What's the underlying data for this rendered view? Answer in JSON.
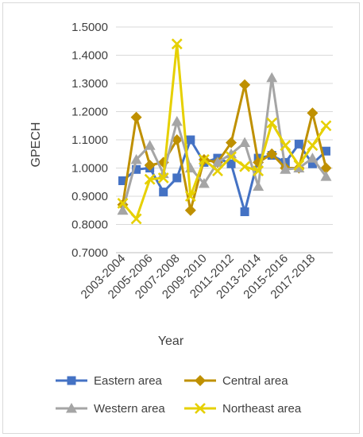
{
  "chart_data": {
    "type": "line",
    "title": "",
    "xlabel": "Year",
    "ylabel": "GPECH",
    "ylim": [
      0.7,
      1.5
    ],
    "y_ticks": [
      "0.7000",
      "0.8000",
      "0.9000",
      "1.0000",
      "1.1000",
      "1.2000",
      "1.3000",
      "1.4000",
      "1.5000"
    ],
    "x": [
      "2003-2004",
      "2004-2005",
      "2005-2006",
      "2006-2007",
      "2007-2008",
      "2008-2009",
      "2009-2010",
      "2010-2011",
      "2011-2012",
      "2012-2013",
      "2013-2014",
      "2014-2015",
      "2015-2016",
      "2016-2017",
      "2017-2018",
      "2018-2019"
    ],
    "x_tick_labels": [
      "2003-2004",
      "2005-2006",
      "2007-2008",
      "2009-2010",
      "2011-2012",
      "2013-2014",
      "2015-2016",
      "2017-2018"
    ],
    "grid": "horizontal",
    "legend_position": "bottom",
    "series": [
      {
        "name": "Eastern area",
        "color": "#4472c4",
        "marker": "square",
        "values": [
          0.955,
          0.995,
          1.0,
          0.915,
          0.965,
          1.1,
          1.02,
          1.035,
          1.015,
          0.845,
          1.035,
          1.045,
          1.02,
          1.085,
          1.015,
          1.06
        ]
      },
      {
        "name": "Central area",
        "color": "#bf9000",
        "marker": "diamond",
        "values": [
          0.87,
          1.18,
          1.01,
          1.02,
          1.1,
          0.85,
          1.03,
          1.02,
          1.09,
          1.295,
          1.02,
          1.05,
          1.0,
          1.0,
          1.195,
          1.0
        ]
      },
      {
        "name": "Western area",
        "color": "#a5a5a5",
        "marker": "triangle",
        "values": [
          0.85,
          1.03,
          1.08,
          0.98,
          1.165,
          1.0,
          0.945,
          1.02,
          1.05,
          1.09,
          0.935,
          1.32,
          0.995,
          1.0,
          1.035,
          0.97
        ]
      },
      {
        "name": "Northeast area",
        "color": "#e6d000",
        "marker": "x",
        "values": [
          0.875,
          0.82,
          0.96,
          0.965,
          1.44,
          0.9,
          1.03,
          0.99,
          1.04,
          1.005,
          0.99,
          1.16,
          1.08,
          1.01,
          1.08,
          1.15
        ]
      }
    ]
  }
}
